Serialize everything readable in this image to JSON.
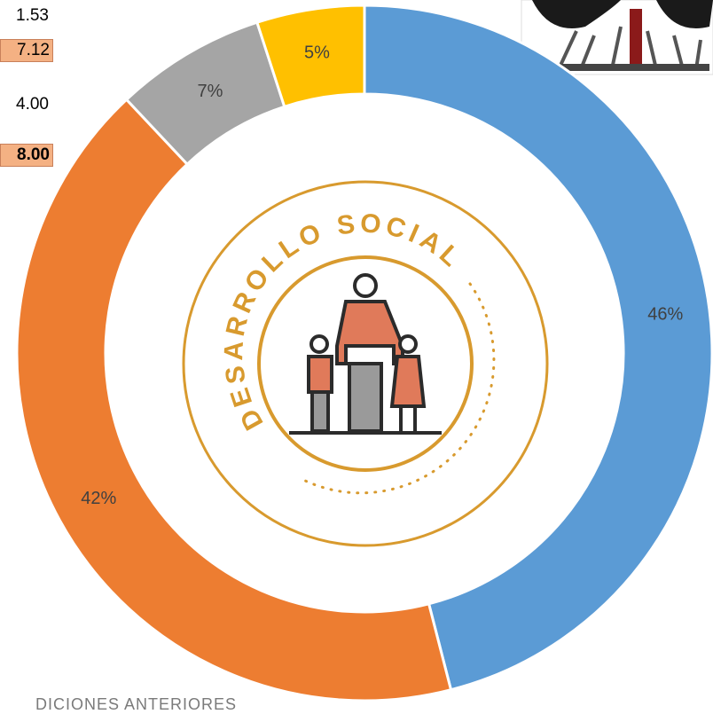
{
  "side_table": [
    "1.53",
    "7.12",
    "4.00",
    "8.00"
  ],
  "footer_text": "DICIONES ANTERIORES",
  "logo_text": "DESARROLLO SOCIAL",
  "chart_data": {
    "type": "donut",
    "categories": [
      null,
      null,
      null,
      null
    ],
    "values": [
      46,
      42,
      7,
      5
    ],
    "value_labels": [
      "46%",
      "42%",
      "7%",
      "5%"
    ],
    "colors": [
      "#5b9bd5",
      "#ed7d31",
      "#a5a5a5",
      "#ffc000"
    ]
  }
}
